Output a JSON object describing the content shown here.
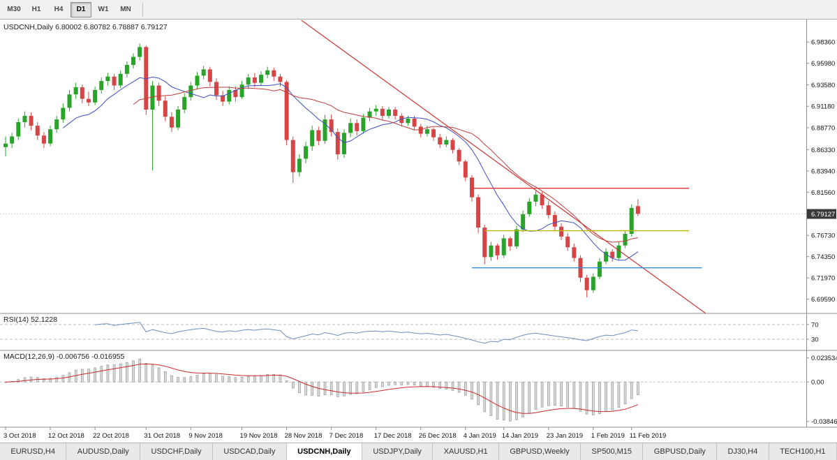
{
  "toolbar": {
    "timeframes": [
      {
        "label": "M30",
        "active": false
      },
      {
        "label": "H1",
        "active": false
      },
      {
        "label": "H4",
        "active": false
      },
      {
        "label": "D1",
        "active": true
      },
      {
        "label": "W1",
        "active": false
      },
      {
        "label": "MN",
        "active": false
      }
    ]
  },
  "chart": {
    "title": "USDCNH,Daily 6.80002 6.80782 6.78887 6.79127",
    "price_badge": "6.79127",
    "axis_labels": [
      "6.98360",
      "6.95980",
      "6.93580",
      "6.91180",
      "6.88770",
      "6.86330",
      "6.83940",
      "6.81560",
      "6.76730",
      "6.74350",
      "6.71970",
      "6.69590"
    ],
    "colors": {
      "up": "#2aa32a",
      "down": "#d64545",
      "ma_fast": "#3c4fc0",
      "ma_slow": "#c23b3b",
      "trendline": "#cc3333",
      "hline_red": "#e03535",
      "hline_yellow": "#b9b400",
      "hline_blue": "#2f8fde",
      "rsi": "#6b8fc2",
      "macd_hist_fill": "#d8d8d8",
      "macd_hist_stroke": "#8f8f8f",
      "macd_signal": "#cc2a2a",
      "badge_bg": "#3a3a3a",
      "border": "#8c8c8c",
      "level_dash": "#bdbdbd",
      "bid_line": "#cfcfcf"
    }
  },
  "rsi_panel": {
    "label": "RSI(14) 52.1228",
    "levels": [
      "70",
      "30"
    ]
  },
  "macd_panel": {
    "label": "MACD(12,26,9) -0.006756 -0.016955",
    "axis": [
      "0.023534",
      "0.00",
      "-0.038466"
    ]
  },
  "tabs": [
    {
      "label": "EURUSD,H4",
      "active": false
    },
    {
      "label": "AUDUSD,Daily",
      "active": false
    },
    {
      "label": "USDCHF,Daily",
      "active": false
    },
    {
      "label": "USDCAD,Daily",
      "active": false
    },
    {
      "label": "USDCNH,Daily",
      "active": true
    },
    {
      "label": "USDJPY,Daily",
      "active": false
    },
    {
      "label": "XAUUSD,H1",
      "active": false
    },
    {
      "label": "GBPUSD,Weekly",
      "active": false
    },
    {
      "label": "SP500,M15",
      "active": false
    },
    {
      "label": "GBPUSD,Daily",
      "active": false
    },
    {
      "label": "DJ30,H4",
      "active": false
    },
    {
      "label": "TECH100,H1",
      "active": false
    }
  ],
  "chart_data": {
    "type": "candlestick",
    "symbol": "USDCNH",
    "timeframe": "Daily",
    "current": {
      "open": 6.80002,
      "high": 6.80782,
      "low": 6.78887,
      "close": 6.79127
    },
    "price_range": [
      6.68,
      7.008
    ],
    "rsi_range": [
      0,
      100
    ],
    "macd_range": [
      -0.0441,
      0.0308
    ],
    "indicators": {
      "ma_fast_period": 10,
      "ma_slow_period": 21,
      "rsi_period": 14,
      "rsi_value": 52.1228,
      "macd": [
        12,
        26,
        9
      ],
      "macd_value": -0.006756,
      "macd_signal_value": -0.016955
    },
    "overlays": {
      "trendline": {
        "i1": 44,
        "p1": 7.02,
        "i2": 110,
        "p2": 6.678
      },
      "hlines": [
        {
          "price": 6.82,
          "i1": 73,
          "i2": 107,
          "color_key": "hline_red"
        },
        {
          "price": 6.7725,
          "i1": 75,
          "i2": 107,
          "color_key": "hline_yellow"
        },
        {
          "price": 6.731,
          "i1": 73,
          "i2": 109,
          "color_key": "hline_blue"
        }
      ]
    },
    "date_labels": [
      {
        "index": 0,
        "text": "3 Oct 2018"
      },
      {
        "index": 7,
        "text": "12 Oct 2018"
      },
      {
        "index": 14,
        "text": "22 Oct 2018"
      },
      {
        "index": 22,
        "text": "31 Oct 2018"
      },
      {
        "index": 29,
        "text": "9 Nov 2018"
      },
      {
        "index": 37,
        "text": "19 Nov 2018"
      },
      {
        "index": 44,
        "text": "28 Nov 2018"
      },
      {
        "index": 51,
        "text": "7 Dec 2018"
      },
      {
        "index": 58,
        "text": "17 Dec 2018"
      },
      {
        "index": 65,
        "text": "26 Dec 2018"
      },
      {
        "index": 72,
        "text": "4 Jan 2019"
      },
      {
        "index": 78,
        "text": "14 Jan 2019"
      },
      {
        "index": 85,
        "text": "23 Jan 2019"
      },
      {
        "index": 92,
        "text": "1 Feb 2019"
      },
      {
        "index": 98,
        "text": "11 Feb 2019"
      }
    ],
    "ohlc": [
      [
        6.866,
        6.878,
        6.856,
        6.87
      ],
      [
        6.87,
        6.882,
        6.865,
        6.878
      ],
      [
        6.878,
        6.898,
        6.874,
        6.894
      ],
      [
        6.894,
        6.906,
        6.888,
        6.901
      ],
      [
        6.901,
        6.905,
        6.885,
        6.89
      ],
      [
        6.89,
        6.894,
        6.874,
        6.879
      ],
      [
        6.879,
        6.883,
        6.865,
        6.87
      ],
      [
        6.87,
        6.89,
        6.867,
        6.886
      ],
      [
        6.886,
        6.901,
        6.882,
        6.897
      ],
      [
        6.897,
        6.915,
        6.893,
        6.91
      ],
      [
        6.91,
        6.93,
        6.906,
        6.925
      ],
      [
        6.925,
        6.938,
        6.92,
        6.933
      ],
      [
        6.933,
        6.936,
        6.915,
        6.92
      ],
      [
        6.92,
        6.928,
        6.912,
        6.916
      ],
      [
        6.916,
        6.934,
        6.913,
        6.93
      ],
      [
        6.93,
        6.944,
        6.926,
        6.94
      ],
      [
        6.94,
        6.949,
        6.935,
        6.945
      ],
      [
        6.945,
        6.948,
        6.93,
        6.935
      ],
      [
        6.935,
        6.952,
        6.932,
        6.948
      ],
      [
        6.948,
        6.962,
        6.944,
        6.958
      ],
      [
        6.958,
        6.971,
        6.954,
        6.967
      ],
      [
        6.967,
        6.982,
        6.963,
        6.978
      ],
      [
        6.978,
        6.98,
        6.902,
        6.908
      ],
      [
        6.908,
        6.94,
        6.84,
        6.935
      ],
      [
        6.935,
        6.938,
        6.912,
        6.918
      ],
      [
        6.918,
        6.923,
        6.895,
        6.9
      ],
      [
        6.9,
        6.905,
        6.883,
        6.888
      ],
      [
        6.888,
        6.912,
        6.885,
        6.908
      ],
      [
        6.908,
        6.926,
        6.904,
        6.922
      ],
      [
        6.922,
        6.939,
        6.918,
        6.935
      ],
      [
        6.935,
        6.95,
        6.931,
        6.946
      ],
      [
        6.946,
        6.957,
        6.942,
        6.953
      ],
      [
        6.953,
        6.956,
        6.934,
        6.939
      ],
      [
        6.939,
        6.943,
        6.919,
        6.924
      ],
      [
        6.924,
        6.929,
        6.912,
        6.917
      ],
      [
        6.917,
        6.934,
        6.914,
        6.93
      ],
      [
        6.93,
        6.934,
        6.917,
        6.922
      ],
      [
        6.922,
        6.94,
        6.92,
        6.936
      ],
      [
        6.936,
        6.948,
        6.931,
        6.944
      ],
      [
        6.944,
        6.949,
        6.933,
        6.938
      ],
      [
        6.938,
        6.951,
        6.935,
        6.947
      ],
      [
        6.947,
        6.956,
        6.943,
        6.952
      ],
      [
        6.952,
        6.955,
        6.94,
        6.945
      ],
      [
        6.945,
        6.948,
        6.934,
        6.939
      ],
      [
        6.939,
        6.941,
        6.868,
        6.874
      ],
      [
        6.874,
        6.878,
        6.826,
        6.838
      ],
      [
        6.838,
        6.858,
        6.833,
        6.853
      ],
      [
        6.853,
        6.872,
        6.848,
        6.867
      ],
      [
        6.867,
        6.89,
        6.862,
        6.885
      ],
      [
        6.885,
        6.889,
        6.868,
        6.873
      ],
      [
        6.873,
        6.902,
        6.87,
        6.897
      ],
      [
        6.897,
        6.903,
        6.878,
        6.883
      ],
      [
        6.883,
        6.887,
        6.852,
        6.858
      ],
      [
        6.858,
        6.886,
        6.854,
        6.882
      ],
      [
        6.882,
        6.898,
        6.877,
        6.893
      ],
      [
        6.893,
        6.897,
        6.879,
        6.884
      ],
      [
        6.884,
        6.903,
        6.881,
        6.899
      ],
      [
        6.899,
        6.91,
        6.895,
        6.906
      ],
      [
        6.906,
        6.913,
        6.901,
        6.909
      ],
      [
        6.909,
        6.912,
        6.896,
        6.901
      ],
      [
        6.901,
        6.911,
        6.898,
        6.908
      ],
      [
        6.908,
        6.911,
        6.897,
        6.901
      ],
      [
        6.901,
        6.904,
        6.889,
        6.893
      ],
      [
        6.893,
        6.901,
        6.89,
        6.898
      ],
      [
        6.898,
        6.901,
        6.885,
        6.889
      ],
      [
        6.889,
        6.892,
        6.877,
        6.881
      ],
      [
        6.881,
        6.89,
        6.878,
        6.886
      ],
      [
        6.886,
        6.888,
        6.873,
        6.877
      ],
      [
        6.877,
        6.881,
        6.865,
        6.869
      ],
      [
        6.869,
        6.878,
        6.866,
        6.874
      ],
      [
        6.874,
        6.876,
        6.859,
        6.863
      ],
      [
        6.863,
        6.865,
        6.846,
        6.85
      ],
      [
        6.85,
        6.852,
        6.828,
        6.832
      ],
      [
        6.832,
        6.835,
        6.805,
        6.81
      ],
      [
        6.81,
        6.813,
        6.77,
        6.776
      ],
      [
        6.776,
        6.779,
        6.735,
        6.743
      ],
      [
        6.743,
        6.76,
        6.739,
        6.756
      ],
      [
        6.756,
        6.758,
        6.74,
        6.745
      ],
      [
        6.745,
        6.768,
        6.742,
        6.764
      ],
      [
        6.764,
        6.766,
        6.75,
        6.755
      ],
      [
        6.755,
        6.778,
        6.752,
        6.774
      ],
      [
        6.774,
        6.795,
        6.771,
        6.791
      ],
      [
        6.791,
        6.809,
        6.788,
        6.805
      ],
      [
        6.805,
        6.817,
        6.8,
        6.813
      ],
      [
        6.813,
        6.816,
        6.797,
        6.801
      ],
      [
        6.801,
        6.806,
        6.786,
        6.79
      ],
      [
        6.79,
        6.794,
        6.773,
        6.777
      ],
      [
        6.777,
        6.781,
        6.762,
        6.766
      ],
      [
        6.766,
        6.77,
        6.75,
        6.754
      ],
      [
        6.754,
        6.758,
        6.738,
        6.742
      ],
      [
        6.742,
        6.745,
        6.715,
        6.72
      ],
      [
        6.72,
        6.723,
        6.698,
        6.706
      ],
      [
        6.706,
        6.725,
        6.703,
        6.721
      ],
      [
        6.721,
        6.742,
        6.718,
        6.738
      ],
      [
        6.738,
        6.753,
        6.735,
        6.749
      ],
      [
        6.749,
        6.752,
        6.738,
        6.742
      ],
      [
        6.742,
        6.76,
        6.74,
        6.756
      ],
      [
        6.756,
        6.773,
        6.753,
        6.769
      ],
      [
        6.769,
        6.802,
        6.766,
        6.798
      ],
      [
        6.8,
        6.8078,
        6.7889,
        6.7913
      ]
    ]
  }
}
